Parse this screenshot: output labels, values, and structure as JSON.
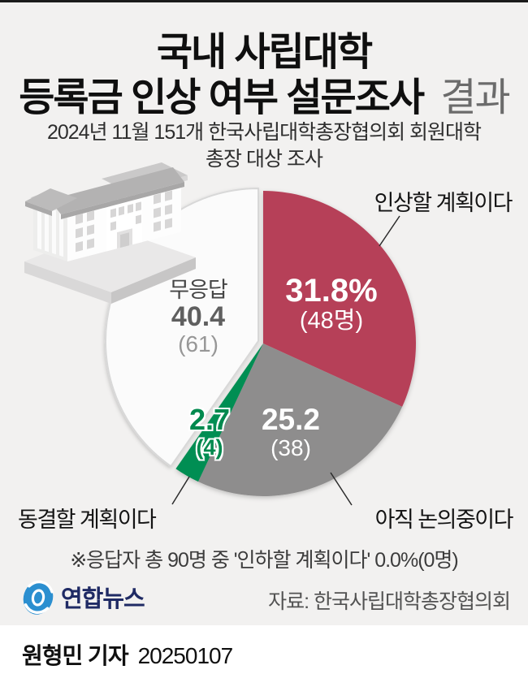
{
  "header": {
    "title_line1": "국내 사립대학",
    "title_line2": "등록금 인상 여부 설문조사",
    "title_line2_suffix": "결과",
    "subtitle_line1": "2024년 11월 151개 한국사립대학총장협의회 회원대학",
    "subtitle_line2": "총장 대상 조사"
  },
  "chart_data": {
    "type": "pie",
    "title": "국내 사립대학 등록금 인상 여부 설문조사 결과",
    "total_respondents": 90,
    "unit": "명",
    "start_angle_deg": 0,
    "direction": "clockwise",
    "legend_position": "callouts",
    "slices": [
      {
        "label": "인상할 계획이다",
        "value_pct": 31.8,
        "count": 48,
        "pct_label": "31.8%",
        "count_label": "(48명)",
        "color": "#b64158"
      },
      {
        "label": "아직 논의중이다",
        "value_pct": 25.2,
        "count": 38,
        "pct_label": "25.2",
        "count_label": "(38)",
        "color": "#8e8d8d"
      },
      {
        "label": "동결할 계획이다",
        "value_pct": 2.7,
        "count": 4,
        "pct_label": "2.7",
        "count_label": "(4)",
        "color": "#008e52"
      },
      {
        "label": "무응답",
        "value_pct": 40.4,
        "count": 61,
        "pct_label": "40.4",
        "count_label": "(61)",
        "color": "#fbfbfb",
        "stroke": "#d8d8d8",
        "exploded": true
      }
    ],
    "footnote": "※응답자 총 90명 중 '인하할 계획이다' 0.0%(0명)"
  },
  "footer": {
    "logo_text": "연합뉴스",
    "source": "자료: 한국사립대학총장협의회",
    "reporter": "원형민 기자",
    "date": "20250107"
  }
}
